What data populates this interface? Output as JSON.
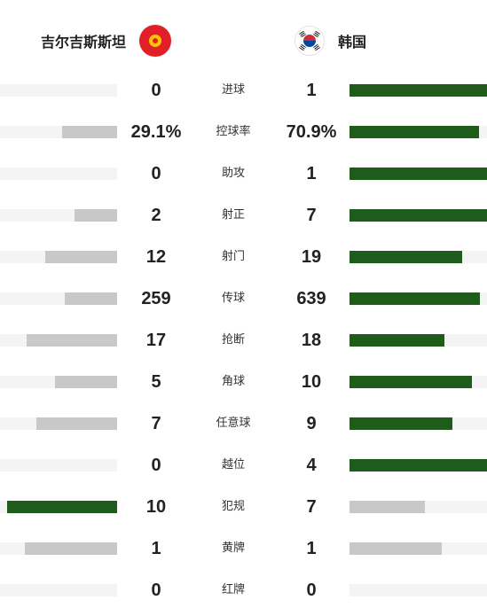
{
  "header": {
    "home_team": "吉尔吉斯斯坦",
    "away_team": "韩国",
    "home_flag": "kyrgyzstan-flag",
    "away_flag": "south-korea-flag"
  },
  "colors": {
    "leader_bar": "#1f5c1b",
    "other_bar": "#c8c8c8",
    "track": "#f4f4f4"
  },
  "stats": [
    {
      "label": "进球",
      "home": "0",
      "away": "1",
      "home_fill": 0.0,
      "away_fill": 1.0,
      "leader": "away"
    },
    {
      "label": "控球率",
      "home": "29.1%",
      "away": "70.9%",
      "home_fill": 0.47,
      "away_fill": 0.94,
      "leader": "away"
    },
    {
      "label": "助攻",
      "home": "0",
      "away": "1",
      "home_fill": 0.0,
      "away_fill": 1.0,
      "leader": "away"
    },
    {
      "label": "射正",
      "home": "2",
      "away": "7",
      "home_fill": 0.36,
      "away_fill": 1.0,
      "leader": "away"
    },
    {
      "label": "射门",
      "home": "12",
      "away": "19",
      "home_fill": 0.61,
      "away_fill": 0.82,
      "leader": "away"
    },
    {
      "label": "传球",
      "home": "259",
      "away": "639",
      "home_fill": 0.45,
      "away_fill": 0.95,
      "leader": "away"
    },
    {
      "label": "抢断",
      "home": "17",
      "away": "18",
      "home_fill": 0.77,
      "away_fill": 0.69,
      "leader": "away"
    },
    {
      "label": "角球",
      "home": "5",
      "away": "10",
      "home_fill": 0.53,
      "away_fill": 0.89,
      "leader": "away"
    },
    {
      "label": "任意球",
      "home": "7",
      "away": "9",
      "home_fill": 0.69,
      "away_fill": 0.75,
      "leader": "away"
    },
    {
      "label": "越位",
      "home": "0",
      "away": "4",
      "home_fill": 0.0,
      "away_fill": 1.0,
      "leader": "away"
    },
    {
      "label": "犯规",
      "home": "10",
      "away": "7",
      "home_fill": 0.94,
      "away_fill": 0.55,
      "leader": "home"
    },
    {
      "label": "黄牌",
      "home": "1",
      "away": "1",
      "home_fill": 0.79,
      "away_fill": 0.67,
      "leader": "none"
    },
    {
      "label": "红牌",
      "home": "0",
      "away": "0",
      "home_fill": 0.0,
      "away_fill": 0.0,
      "leader": "none"
    }
  ]
}
